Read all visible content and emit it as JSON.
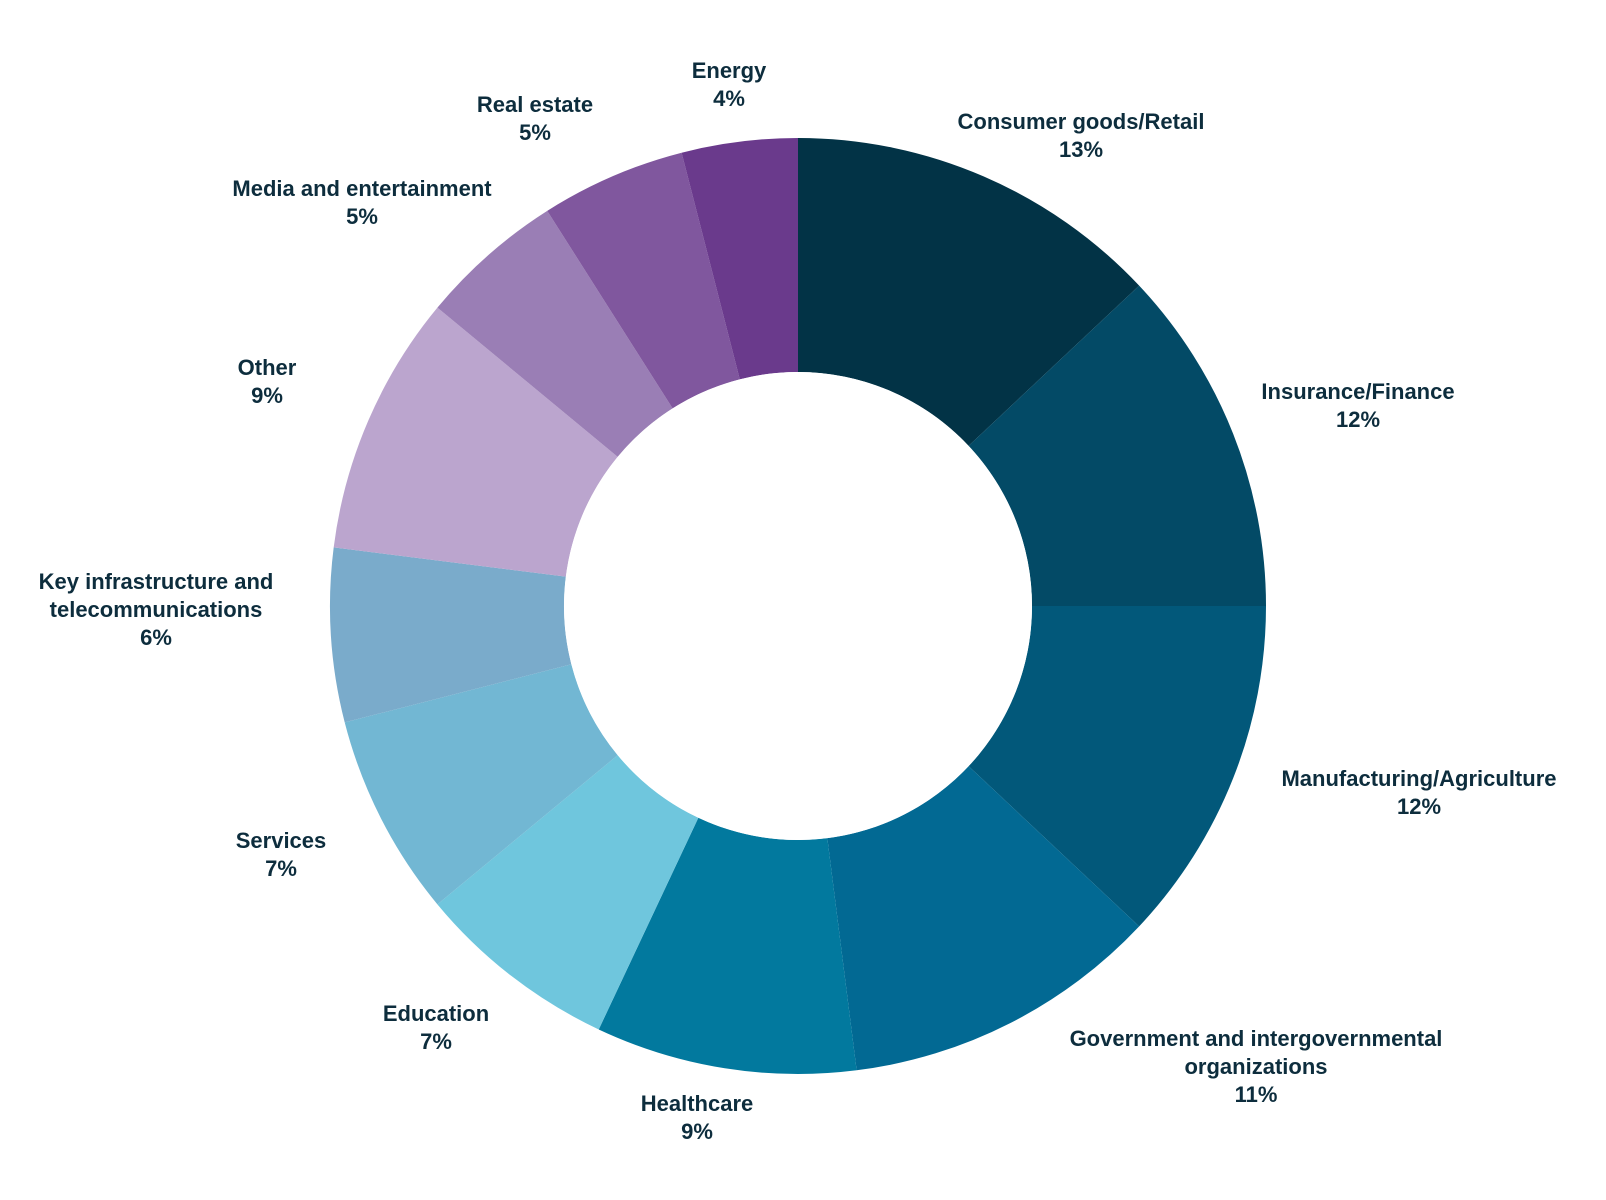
{
  "chart_data": {
    "type": "pie",
    "variant": "donut",
    "start": "top",
    "direction": "clockwise",
    "categories": [
      "Consumer goods/Retail",
      "Insurance/Finance",
      "Manufacturing/Agriculture",
      "Government and intergovernmental organizations",
      "Healthcare",
      "Education",
      "Services",
      "Key infrastructure and telecommunications",
      "Other",
      "Media and entertainment",
      "Real estate",
      "Energy"
    ],
    "values": [
      13,
      12,
      12,
      11,
      9,
      7,
      7,
      6,
      9,
      5,
      5,
      4
    ],
    "colors": [
      "#023346",
      "#034A66",
      "#02587A",
      "#026993",
      "#02799E",
      "#6FC6DD",
      "#72B7D3",
      "#7AABCB",
      "#BBA5CE",
      "#9A7EB5",
      "#80579E",
      "#6A3A8C"
    ],
    "label_lines": [
      [
        "Consumer goods/Retail",
        "13%"
      ],
      [
        "Insurance/Finance",
        "12%"
      ],
      [
        "Manufacturing/Agriculture",
        "12%"
      ],
      [
        "Government and intergovernmental",
        "organizations",
        "11%"
      ],
      [
        "Healthcare",
        "9%"
      ],
      [
        "Education",
        "7%"
      ],
      [
        "Services",
        "7%"
      ],
      [
        "Key infrastructure and",
        "telecommunications",
        "6%"
      ],
      [
        "Other",
        "9%"
      ],
      [
        "Media and entertainment",
        "5%"
      ],
      [
        "Real estate",
        "5%"
      ],
      [
        "Energy",
        "4%"
      ]
    ],
    "label_color": "#0D2D3D"
  }
}
